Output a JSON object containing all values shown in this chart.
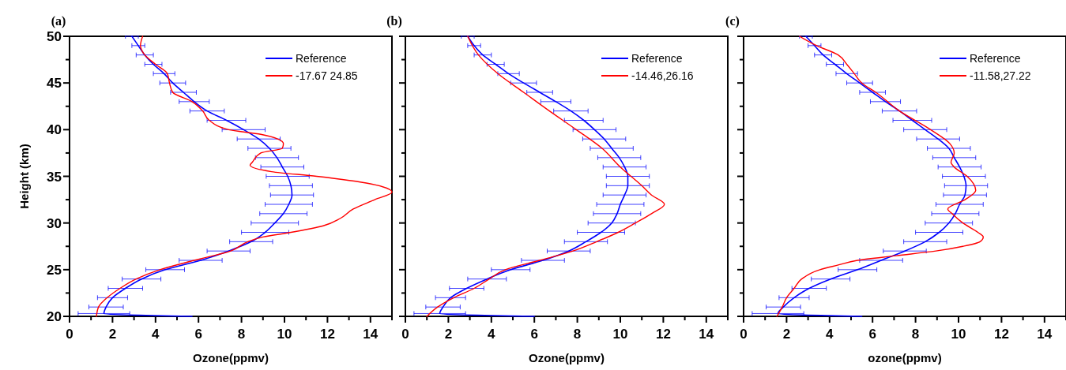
{
  "chart_data": [
    {
      "type": "line",
      "title": "(a)",
      "xlabel": "Ozone(ppmv)",
      "ylabel": "Height (km)",
      "xlim": [
        0,
        15
      ],
      "xticks": [
        0,
        2,
        4,
        6,
        8,
        10,
        12,
        14
      ],
      "ylim": [
        20,
        50
      ],
      "yticks": [
        20,
        25,
        30,
        35,
        40,
        45,
        50
      ],
      "legend": "top right",
      "series": [
        {
          "name": "Reference",
          "color": "#0000ff",
          "x": [
            5.7,
            1.6,
            1.7,
            2.0,
            2.6,
            3.35,
            4.45,
            6.1,
            7.4,
            8.45,
            9.1,
            9.55,
            9.95,
            10.2,
            10.35,
            10.3,
            10.15,
            9.9,
            9.65,
            9.3,
            8.8,
            8.1,
            7.3,
            6.4,
            5.8,
            5.3,
            4.8,
            4.4,
            3.9,
            3.5,
            3.2,
            2.9
          ],
          "values": [
            20,
            20.3,
            21,
            22,
            23,
            24,
            25,
            26,
            27,
            28,
            29,
            30,
            31,
            32,
            33,
            34,
            35,
            36,
            37,
            38,
            39,
            40,
            41,
            42,
            43,
            44,
            45,
            46,
            47,
            48,
            49,
            50
          ],
          "xerrors": [
            null,
            1.2,
            0.8,
            0.7,
            0.8,
            0.9,
            0.9,
            1.0,
            1.0,
            1.0,
            1.1,
            1.1,
            1.1,
            1.1,
            1.0,
            1.0,
            1.0,
            1.0,
            1.0,
            1.0,
            1.0,
            1.0,
            0.9,
            0.8,
            0.7,
            0.6,
            0.6,
            0.5,
            0.4,
            0.4,
            0.3,
            0.3
          ]
        },
        {
          "name": "-17.67 24.85",
          "color": "#ff0000",
          "x": [
            1.25,
            1.35,
            1.75,
            2.35,
            3.1,
            4.2,
            5.8,
            7.5,
            8.3,
            9.0,
            10.3,
            11.8,
            12.6,
            13.2,
            14.2,
            15.0,
            14.0,
            11.5,
            9.4,
            8.4,
            8.5,
            8.9,
            9.9,
            9.95,
            8.9,
            7.4,
            6.5,
            6.2,
            5.7,
            4.8,
            4.65,
            4.55,
            4.0,
            3.5,
            3.3,
            3.4
          ],
          "values": [
            20,
            21,
            22,
            23,
            24,
            25,
            26,
            27,
            28,
            28.5,
            29,
            29.7,
            30.5,
            31.5,
            32.5,
            33.3,
            34.2,
            35,
            35.5,
            36.2,
            36.5,
            37.5,
            38,
            38.5,
            39.5,
            40,
            41,
            42,
            43,
            44,
            45,
            46,
            47,
            48,
            49,
            50
          ]
        }
      ]
    },
    {
      "type": "line",
      "title": "(b)",
      "xlabel": "Ozone(ppmv)",
      "xlim": [
        0,
        15
      ],
      "xticks": [
        0,
        2,
        4,
        6,
        8,
        10,
        12,
        14
      ],
      "ylim": [
        20,
        50
      ],
      "yticks": [
        20,
        25,
        30,
        35,
        40,
        45,
        50
      ],
      "tick_labels": "x",
      "legend": "top right",
      "series": [
        {
          "name": "Reference",
          "color": "#0000ff",
          "x": [
            6.0,
            1.6,
            1.75,
            2.1,
            2.85,
            3.8,
            4.9,
            6.4,
            7.6,
            8.4,
            9.1,
            9.6,
            9.85,
            10.0,
            10.2,
            10.35,
            10.35,
            10.2,
            9.95,
            9.6,
            9.25,
            8.8,
            8.3,
            7.7,
            7.0,
            6.25,
            5.5,
            4.8,
            4.2,
            3.6,
            3.2,
            2.9
          ],
          "values": [
            20,
            20.3,
            21,
            22,
            23,
            24,
            25,
            26,
            27,
            28,
            29,
            30,
            31,
            32,
            33,
            34,
            35,
            36,
            37,
            38,
            39,
            40,
            41,
            42,
            43,
            44,
            45,
            46,
            47,
            48,
            49,
            50
          ],
          "xerrors": [
            null,
            1.2,
            0.8,
            0.7,
            0.8,
            0.9,
            0.9,
            1.0,
            1.0,
            1.0,
            1.1,
            1.1,
            1.1,
            1.1,
            1.0,
            1.0,
            1.0,
            1.0,
            1.0,
            1.0,
            1.0,
            1.0,
            0.9,
            0.8,
            0.7,
            0.6,
            0.6,
            0.5,
            0.4,
            0.4,
            0.3,
            0.3
          ]
        },
        {
          "name": "-14.46,26.16",
          "color": "#ff0000",
          "x": [
            1.0,
            1.5,
            2.25,
            3.2,
            3.9,
            4.65,
            6.25,
            7.8,
            8.9,
            9.9,
            10.7,
            11.45,
            12.05,
            11.45,
            11.0,
            10.0,
            9.15,
            7.95,
            6.7,
            5.5,
            4.3,
            3.4,
            2.9
          ],
          "values": [
            20,
            21,
            22,
            23,
            24,
            25,
            26,
            27,
            28,
            29,
            30,
            31,
            32,
            33,
            34,
            36,
            38,
            40,
            42,
            44,
            46,
            48,
            50
          ]
        }
      ]
    },
    {
      "type": "line",
      "title": "(c)",
      "xlabel": "ozone(ppmv)",
      "xlim": [
        0,
        15
      ],
      "xticks": [
        0,
        2,
        4,
        6,
        8,
        10,
        12,
        14
      ],
      "ylim": [
        20,
        50
      ],
      "yticks": [
        20,
        25,
        30,
        35,
        40,
        45,
        50
      ],
      "tick_labels": "x",
      "legend": "top right",
      "series": [
        {
          "name": "Reference",
          "color": "#0000ff",
          "x": [
            5.5,
            1.6,
            1.85,
            2.35,
            3.05,
            4.05,
            5.3,
            6.4,
            7.5,
            8.45,
            9.1,
            9.55,
            9.85,
            10.05,
            10.3,
            10.35,
            10.25,
            10.05,
            9.8,
            9.55,
            9.05,
            8.45,
            7.85,
            7.25,
            6.6,
            6.0,
            5.4,
            4.8,
            4.25,
            3.7,
            3.3,
            2.9
          ],
          "values": [
            20,
            20.3,
            21,
            22,
            23,
            24,
            25,
            26,
            27,
            28,
            29,
            30,
            31,
            32,
            33,
            34,
            35,
            36,
            37,
            38,
            39,
            40,
            41,
            42,
            43,
            44,
            45,
            46,
            47,
            48,
            49,
            50
          ],
          "xerrors": [
            null,
            1.2,
            0.8,
            0.7,
            0.8,
            0.9,
            0.9,
            1.0,
            1.0,
            1.0,
            1.1,
            1.1,
            1.1,
            1.1,
            1.0,
            1.0,
            1.0,
            1.0,
            1.0,
            1.0,
            1.0,
            1.0,
            0.9,
            0.8,
            0.7,
            0.6,
            0.6,
            0.5,
            0.4,
            0.4,
            0.3,
            0.3
          ]
        },
        {
          "name": "-11.58,27.22",
          "color": "#ff0000",
          "x": [
            1.55,
            1.8,
            2.0,
            2.35,
            2.7,
            3.55,
            4.4,
            5.3,
            7.1,
            8.95,
            10.2,
            11.0,
            11.15,
            10.9,
            10.2,
            9.7,
            9.5,
            10.3,
            10.8,
            10.4,
            9.8,
            9.65,
            9.8,
            9.6,
            8.7,
            7.25,
            6.15,
            5.5,
            5.15,
            4.8,
            4.4,
            3.4,
            2.6
          ],
          "values": [
            20,
            21,
            22,
            23,
            24,
            25,
            25.5,
            26,
            26.5,
            27,
            27.5,
            28,
            28.5,
            29,
            30,
            31,
            31.5,
            32.5,
            33.5,
            35,
            36,
            36.5,
            37.5,
            38.5,
            40,
            42,
            44,
            45,
            46,
            47,
            48,
            49,
            50
          ]
        }
      ]
    }
  ]
}
